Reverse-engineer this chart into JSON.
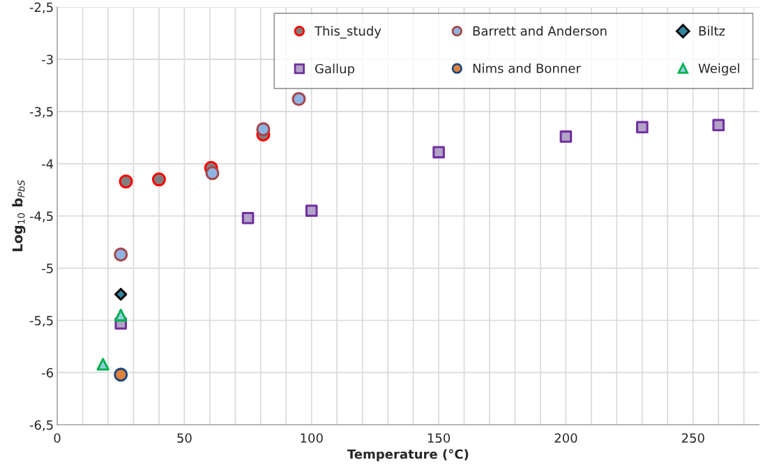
{
  "chart_data": {
    "type": "scatter",
    "xlabel": "Temperature (°C)",
    "ylabel": "Log$_{10}$ b$_{PbS}$",
    "xlim": [
      0,
      276
    ],
    "ylim": [
      -6.5,
      -2.5
    ],
    "xticks": [
      0,
      {
        "value": 10,
        "label": null
      },
      {
        "value": 20,
        "label": null
      },
      {
        "value": 30,
        "label": null
      },
      {
        "value": 40,
        "label": null
      },
      50,
      {
        "value": 60,
        "label": null
      },
      {
        "value": 70,
        "label": null
      },
      {
        "value": 80,
        "label": null
      },
      {
        "value": 90,
        "label": null
      },
      100,
      {
        "value": 110,
        "label": null
      },
      {
        "value": 120,
        "label": null
      },
      {
        "value": 130,
        "label": null
      },
      {
        "value": 140,
        "label": null
      },
      150,
      {
        "value": 160,
        "label": null
      },
      {
        "value": 170,
        "label": null
      },
      {
        "value": 180,
        "label": null
      },
      {
        "value": 190,
        "label": null
      },
      200,
      {
        "value": 210,
        "label": null
      },
      {
        "value": 220,
        "label": null
      },
      {
        "value": 230,
        "label": null
      },
      {
        "value": 240,
        "label": null
      },
      250,
      {
        "value": 260,
        "label": null
      },
      {
        "value": 270,
        "label": null
      }
    ],
    "yticks": [
      {
        "value": -6.5,
        "label": "-6,5"
      },
      -6,
      {
        "value": -5.5,
        "label": "-5,5"
      },
      -5,
      {
        "value": -4.5,
        "label": "-4,5"
      },
      -4,
      {
        "value": -3.5,
        "label": "-3,5"
      },
      -3,
      {
        "value": -2.5,
        "label": "-2,5"
      }
    ],
    "grid": true,
    "legend": "top right",
    "series": [
      {
        "name": "This_study",
        "color": "#7f7f7f",
        "marker": "circle",
        "x": [
          27,
          40,
          60.5,
          81
        ],
        "values": [
          -4.17,
          -4.15,
          -4.04,
          -3.72
        ]
      },
      {
        "name": "Barrett and Anderson",
        "color": "#8eb4e3",
        "marker": "circle",
        "x": [
          25,
          61,
          81,
          95
        ],
        "values": [
          -4.87,
          -4.09,
          -3.67,
          -3.38
        ]
      },
      {
        "name": "Biltz",
        "color": "#31859c",
        "marker": "diamond",
        "x": [
          25
        ],
        "values": [
          -5.25
        ]
      },
      {
        "name": "Gallup",
        "color": "#b3a2c7",
        "marker": "square",
        "x": [
          25,
          75,
          100,
          150,
          200,
          230,
          260
        ],
        "values": [
          -5.53,
          -4.52,
          -4.45,
          -3.89,
          -3.74,
          -3.65,
          -3.63
        ]
      },
      {
        "name": "Nims and Bonner",
        "color": "#e0823a",
        "marker": "circle",
        "x": [
          25
        ],
        "values": [
          -6.02
        ]
      },
      {
        "name": "Weigel",
        "color": "#93cddd",
        "marker": "triangle",
        "x": [
          18,
          25
        ],
        "values": [
          -5.92,
          -5.45
        ]
      }
    ]
  }
}
